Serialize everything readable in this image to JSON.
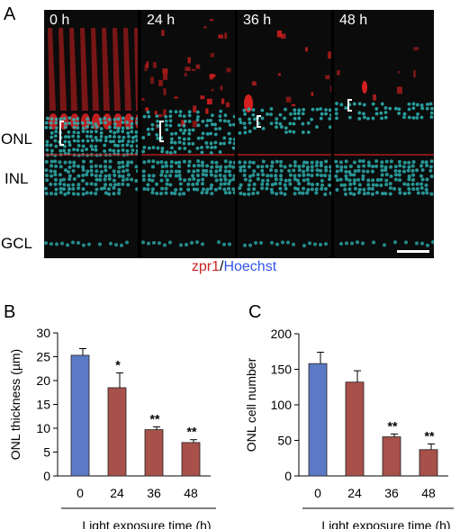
{
  "figure": {
    "panel_a_letter": "A",
    "panel_b_letter": "B",
    "panel_c_letter": "C",
    "layer_labels": [
      "ONL",
      "INL",
      "GCL"
    ],
    "timepoints": [
      "0 h",
      "24 h",
      "36 h",
      "48 h"
    ],
    "stain_legend": {
      "zpr1": "zpr1",
      "separator": "/",
      "hoechst": "Hoechst"
    },
    "colors": {
      "zpr1": "#cc2222",
      "hoechst": "#3355ee",
      "nuclei": "#2fb5b5",
      "cones": "#d42020"
    }
  },
  "chart_data": [
    {
      "type": "bar",
      "categories": [
        "0",
        "24",
        "36",
        "48"
      ],
      "values": [
        25.3,
        18.5,
        9.7,
        7.0
      ],
      "errors": [
        1.4,
        3.1,
        0.6,
        0.6
      ],
      "significance": [
        "",
        "*",
        "**",
        "**"
      ],
      "bar_colors": [
        "#5b79c4",
        "#a8504a",
        "#a8504a",
        "#a8504a"
      ],
      "ylabel": "ONL thickness (µm)",
      "xlabel": "Light exposure time (h)",
      "ylim": [
        0,
        30
      ],
      "yticks": [
        0,
        5,
        10,
        15,
        20,
        25,
        30
      ]
    },
    {
      "type": "bar",
      "categories": [
        "0",
        "24",
        "36",
        "48"
      ],
      "values": [
        158,
        132,
        55,
        37
      ],
      "errors": [
        16,
        16,
        4,
        8
      ],
      "significance": [
        "",
        "",
        "**",
        "**"
      ],
      "bar_colors": [
        "#5b79c4",
        "#a8504a",
        "#a8504a",
        "#a8504a"
      ],
      "ylabel": "ONL cell number",
      "xlabel": "Light exposure time (h)",
      "ylim": [
        0,
        200
      ],
      "yticks": [
        0,
        50,
        100,
        150,
        200
      ]
    }
  ]
}
